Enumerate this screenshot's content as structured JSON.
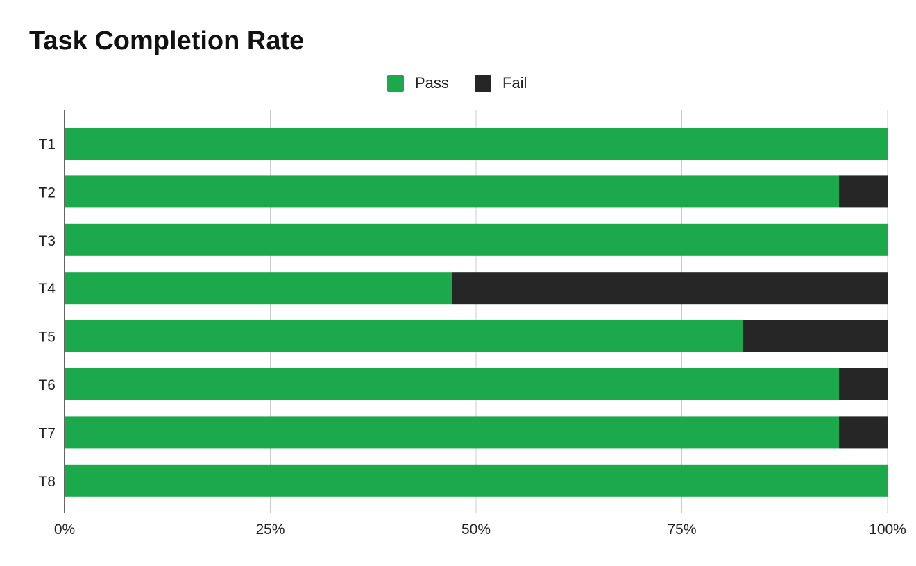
{
  "chart_data": {
    "type": "bar",
    "orientation": "horizontal",
    "stacked": true,
    "title": "Task Completion Rate",
    "categories": [
      "T1",
      "T2",
      "T3",
      "T4",
      "T5",
      "T6",
      "T7",
      "T8"
    ],
    "series": [
      {
        "name": "Pass",
        "color": "#1ba94c",
        "values": [
          100,
          94.1,
          100,
          47.1,
          82.4,
          94.1,
          94.1,
          100
        ]
      },
      {
        "name": "Fail",
        "color": "#262626",
        "values": [
          0,
          5.9,
          0,
          52.9,
          17.6,
          5.9,
          5.9,
          0
        ]
      }
    ],
    "xlim": [
      0,
      100
    ],
    "xticks": [
      "0%",
      "25%",
      "50%",
      "75%",
      "100%"
    ],
    "xlabel": "",
    "ylabel": "",
    "grid": true,
    "legend": "top-center"
  }
}
